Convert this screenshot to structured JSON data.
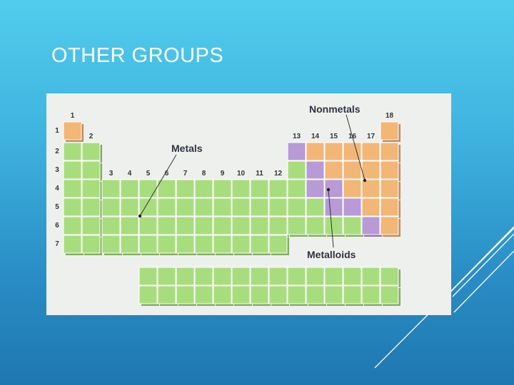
{
  "slide": {
    "title": "OTHER GROUPS"
  },
  "figure": {
    "callouts": {
      "metals": "Metals",
      "nonmetals": "Nonmetals",
      "metalloids": "Metalloids"
    },
    "group_numbers": [
      "1",
      "2",
      "3",
      "4",
      "5",
      "6",
      "7",
      "8",
      "9",
      "10",
      "11",
      "12",
      "13",
      "14",
      "15",
      "16",
      "17",
      "18"
    ],
    "period_numbers": [
      "1",
      "2",
      "3",
      "4",
      "5",
      "6",
      "7"
    ],
    "colors": {
      "metals": "#a8dd7e",
      "nonmetals": "#f2b677",
      "metalloids": "#b79ad6"
    }
  }
}
